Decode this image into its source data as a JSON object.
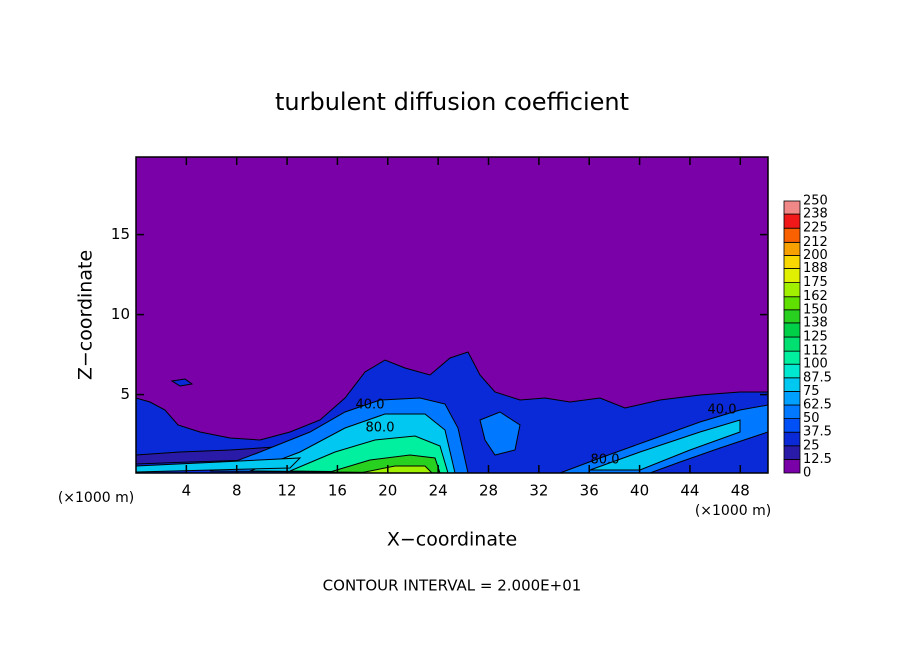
{
  "chart_data": {
    "type": "contour",
    "title": "turbulent diffusion coefficient",
    "xlabel": "X−coordinate",
    "ylabel": "Z−coordinate",
    "axis_unit": "(×1000 m)",
    "footer": "CONTOUR INTERVAL = 2.000E+01",
    "xlim": [
      0,
      50.2
    ],
    "xticks": [
      4,
      8,
      12,
      16,
      20,
      24,
      28,
      32,
      36,
      40,
      44,
      48
    ],
    "ylim": [
      0.1,
      19.85
    ],
    "yticks": [
      5,
      10,
      15
    ],
    "contour_labels": [
      "40.0",
      "80.0",
      "80.0",
      "40.0"
    ],
    "colorbar": {
      "levels": [
        0,
        12.5,
        25,
        37.5,
        50,
        62.5,
        75,
        87.5,
        100,
        112,
        125,
        138,
        150,
        162,
        175,
        188,
        200,
        212,
        225,
        238,
        250
      ],
      "colors": [
        "#7a00a8",
        "#2a1aa8",
        "#0a2ad8",
        "#0050f8",
        "#0078ff",
        "#00a0ff",
        "#00c8f0",
        "#00e8d0",
        "#00f0a0",
        "#00e070",
        "#00d048",
        "#28d020",
        "#60e000",
        "#a0f000",
        "#e0f000",
        "#f8d800",
        "#f8a000",
        "#f86000",
        "#f01818",
        "#f08888"
      ]
    }
  }
}
